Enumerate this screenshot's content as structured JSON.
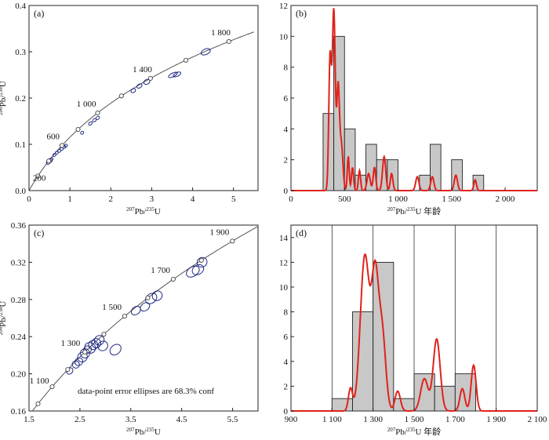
{
  "chart_data": [
    {
      "panel": "a",
      "type": "scatter",
      "panel_label": "(a)",
      "xlabel": {
        "sup1": "207",
        "main1": "Pb/",
        "sup2": "235",
        "main2": "U"
      },
      "ylabel": {
        "sup1": "206",
        "main1": "Pb/",
        "sup2": "238",
        "main2": "U"
      },
      "xlim": [
        0,
        5.6
      ],
      "ylim": [
        0,
        0.4
      ],
      "x_ticks": [
        {
          "v": 0,
          "label": "0"
        },
        {
          "v": 1,
          "label": "1"
        },
        {
          "v": 2,
          "label": "2"
        },
        {
          "v": 3,
          "label": "3"
        },
        {
          "v": 4,
          "label": "4"
        },
        {
          "v": 5,
          "label": "5"
        }
      ],
      "y_ticks": [
        {
          "v": 0,
          "label": "0.0"
        },
        {
          "v": 0.1,
          "label": "0.1"
        },
        {
          "v": 0.2,
          "label": "0.2"
        },
        {
          "v": 0.3,
          "label": "0.3"
        },
        {
          "v": 0.4,
          "label": "0.4"
        }
      ],
      "concordia_age_ma": [
        0,
        1900
      ],
      "age_markers_ma": [
        200,
        400,
        600,
        800,
        1000,
        1200,
        1400,
        1600,
        1800
      ],
      "age_labels": [
        {
          "age": 200,
          "text": "200"
        },
        {
          "age": 600,
          "text": "600"
        },
        {
          "age": 1000,
          "text": "1 000"
        },
        {
          "age": 1400,
          "text": "1 400"
        },
        {
          "age": 1800,
          "text": "1 800"
        }
      ],
      "ellipses": [
        [
          0.47,
          0.061,
          0.05,
          0.004
        ],
        [
          0.52,
          0.065,
          0.05,
          0.004
        ],
        [
          0.55,
          0.068,
          0.04,
          0.003
        ],
        [
          0.62,
          0.077,
          0.04,
          0.003
        ],
        [
          0.68,
          0.082,
          0.04,
          0.003
        ],
        [
          0.74,
          0.086,
          0.04,
          0.003
        ],
        [
          0.8,
          0.09,
          0.04,
          0.003
        ],
        [
          0.86,
          0.094,
          0.04,
          0.003
        ],
        [
          0.9,
          0.097,
          0.04,
          0.003
        ],
        [
          1.3,
          0.125,
          0.04,
          0.003
        ],
        [
          1.5,
          0.145,
          0.05,
          0.003
        ],
        [
          1.6,
          0.152,
          0.05,
          0.003
        ],
        [
          1.68,
          0.157,
          0.05,
          0.003
        ],
        [
          2.55,
          0.216,
          0.06,
          0.004
        ],
        [
          2.7,
          0.226,
          0.07,
          0.004
        ],
        [
          2.88,
          0.235,
          0.08,
          0.005
        ],
        [
          3.52,
          0.25,
          0.12,
          0.004
        ],
        [
          3.62,
          0.251,
          0.1,
          0.004
        ],
        [
          4.32,
          0.3,
          0.12,
          0.006
        ]
      ]
    },
    {
      "panel": "b",
      "type": "bar",
      "panel_label": "(b)",
      "xlabel": {
        "sup1": "207",
        "main1": "Pb/",
        "sup2": "235",
        "main2": "U 年龄"
      },
      "xlim": [
        0,
        2300
      ],
      "ylim": [
        0,
        12
      ],
      "x_ticks": [
        {
          "v": 0,
          "label": "0"
        },
        {
          "v": 500,
          "label": "500"
        },
        {
          "v": 1000,
          "label": "1 000"
        },
        {
          "v": 1500,
          "label": "1 500"
        },
        {
          "v": 2000,
          "label": "2 000"
        }
      ],
      "y_ticks": [
        {
          "v": 0,
          "label": "0"
        },
        {
          "v": 2,
          "label": "2"
        },
        {
          "v": 4,
          "label": "4"
        },
        {
          "v": 6,
          "label": "6"
        },
        {
          "v": 8,
          "label": "8"
        },
        {
          "v": 10,
          "label": "10"
        },
        {
          "v": 12,
          "label": "12"
        }
      ],
      "bins": [
        {
          "from": 300,
          "to": 400,
          "count": 5
        },
        {
          "from": 400,
          "to": 500,
          "count": 10
        },
        {
          "from": 500,
          "to": 600,
          "count": 4
        },
        {
          "from": 600,
          "to": 700,
          "count": 1
        },
        {
          "from": 700,
          "to": 800,
          "count": 3
        },
        {
          "from": 800,
          "to": 900,
          "count": 2
        },
        {
          "from": 900,
          "to": 1000,
          "count": 2
        },
        {
          "from": 1200,
          "to": 1300,
          "count": 1
        },
        {
          "from": 1300,
          "to": 1400,
          "count": 3
        },
        {
          "from": 1500,
          "to": 1600,
          "count": 2
        },
        {
          "from": 1700,
          "to": 1800,
          "count": 1
        }
      ],
      "density_peaks": [
        [
          365,
          8.5,
          12
        ],
        [
          400,
          11.7,
          14
        ],
        [
          440,
          6.5,
          12
        ],
        [
          470,
          3,
          15
        ],
        [
          535,
          2.2,
          9
        ],
        [
          575,
          1.5,
          10
        ],
        [
          640,
          1.3,
          10
        ],
        [
          725,
          1.1,
          15
        ],
        [
          780,
          1.5,
          12
        ],
        [
          870,
          2.2,
          15
        ],
        [
          940,
          1.1,
          12
        ],
        [
          1180,
          0.9,
          15
        ],
        [
          1320,
          0.9,
          15
        ],
        [
          1540,
          1,
          15
        ],
        [
          1720,
          0.7,
          12
        ]
      ]
    },
    {
      "panel": "c",
      "type": "scatter",
      "panel_label": "(c)",
      "xlabel": {
        "sup1": "207",
        "main1": "Pb/",
        "sup2": "235",
        "main2": "U"
      },
      "ylabel": {
        "sup1": "206",
        "main1": "Pb/",
        "sup2": "238",
        "main2": "U"
      },
      "xlim": [
        1.5,
        6.0
      ],
      "ylim": [
        0.16,
        0.36
      ],
      "x_ticks": [
        {
          "v": 1.5,
          "label": "1.5"
        },
        {
          "v": 2.5,
          "label": "2.5"
        },
        {
          "v": 3.5,
          "label": "3.5"
        },
        {
          "v": 4.5,
          "label": "4.5"
        },
        {
          "v": 5.5,
          "label": "5.5"
        }
      ],
      "y_ticks": [
        {
          "v": 0.16,
          "label": "0.16"
        },
        {
          "v": 0.2,
          "label": "0.20"
        },
        {
          "v": 0.24,
          "label": "0.24"
        },
        {
          "v": 0.28,
          "label": "0.28"
        },
        {
          "v": 0.32,
          "label": "0.32"
        },
        {
          "v": 0.36,
          "label": "0.36"
        }
      ],
      "concordia_age_ma": [
        950,
        2050
      ],
      "age_markers_ma": [
        1000,
        1100,
        1200,
        1300,
        1400,
        1500,
        1600,
        1700,
        1800,
        1900
      ],
      "age_labels": [
        {
          "age": 1100,
          "text": "1 100"
        },
        {
          "age": 1300,
          "text": "1 300"
        },
        {
          "age": 1500,
          "text": "1 500"
        },
        {
          "age": 1700,
          "text": "1 700"
        },
        {
          "age": 1900,
          "text": "1 900"
        }
      ],
      "note": "data-point error ellipses are 68.3% conf",
      "ellipses": [
        [
          2.3,
          0.203,
          0.07,
          0.003
        ],
        [
          2.42,
          0.21,
          0.07,
          0.004
        ],
        [
          2.48,
          0.213,
          0.08,
          0.004
        ],
        [
          2.55,
          0.218,
          0.1,
          0.005
        ],
        [
          2.6,
          0.222,
          0.09,
          0.005
        ],
        [
          2.65,
          0.226,
          0.08,
          0.004
        ],
        [
          2.7,
          0.228,
          0.1,
          0.006
        ],
        [
          2.76,
          0.231,
          0.09,
          0.005
        ],
        [
          2.82,
          0.233,
          0.09,
          0.005
        ],
        [
          2.88,
          0.236,
          0.1,
          0.005
        ],
        [
          2.95,
          0.23,
          0.1,
          0.005
        ],
        [
          3.2,
          0.226,
          0.12,
          0.005
        ],
        [
          3.6,
          0.268,
          0.1,
          0.004
        ],
        [
          3.78,
          0.272,
          0.1,
          0.004
        ],
        [
          3.9,
          0.281,
          0.12,
          0.005
        ],
        [
          4.02,
          0.284,
          0.1,
          0.005
        ],
        [
          4.72,
          0.31,
          0.14,
          0.005
        ],
        [
          4.82,
          0.312,
          0.12,
          0.005
        ],
        [
          4.9,
          0.32,
          0.1,
          0.005
        ]
      ]
    },
    {
      "panel": "d",
      "type": "bar",
      "panel_label": "(d)",
      "xlabel": {
        "sup1": "207",
        "main1": "Pb/",
        "sup2": "235",
        "main2": "U 年龄"
      },
      "xlim": [
        900,
        2100
      ],
      "ylim": [
        0,
        15
      ],
      "x_ticks": [
        {
          "v": 900,
          "label": "900"
        },
        {
          "v": 1100,
          "label": "1 100"
        },
        {
          "v": 1300,
          "label": "1 300"
        },
        {
          "v": 1500,
          "label": "1 500"
        },
        {
          "v": 1700,
          "label": "1 700"
        },
        {
          "v": 1900,
          "label": "1 900"
        },
        {
          "v": 2100,
          "label": "2 100"
        }
      ],
      "y_ticks": [
        {
          "v": 0,
          "label": "0"
        },
        {
          "v": 2,
          "label": "2"
        },
        {
          "v": 4,
          "label": "4"
        },
        {
          "v": 6,
          "label": "6"
        },
        {
          "v": 8,
          "label": "8"
        },
        {
          "v": 10,
          "label": "10"
        },
        {
          "v": 12,
          "label": "12"
        },
        {
          "v": 14,
          "label": "14"
        }
      ],
      "vlines": [
        1100,
        1300,
        1500,
        1700,
        1900
      ],
      "bins": [
        {
          "from": 1100,
          "to": 1200,
          "count": 1
        },
        {
          "from": 1200,
          "to": 1300,
          "count": 8
        },
        {
          "from": 1300,
          "to": 1400,
          "count": 12
        },
        {
          "from": 1400,
          "to": 1500,
          "count": 1
        },
        {
          "from": 1500,
          "to": 1600,
          "count": 3
        },
        {
          "from": 1600,
          "to": 1700,
          "count": 2
        },
        {
          "from": 1700,
          "to": 1800,
          "count": 3
        }
      ],
      "density_peaks": [
        [
          1190,
          1.8,
          10
        ],
        [
          1260,
          12.5,
          22
        ],
        [
          1310,
          10.5,
          17
        ],
        [
          1345,
          6,
          17
        ],
        [
          1420,
          1.6,
          13
        ],
        [
          1550,
          2.6,
          18
        ],
        [
          1610,
          5.8,
          17
        ],
        [
          1735,
          1.8,
          12
        ],
        [
          1790,
          3.7,
          12
        ]
      ]
    }
  ]
}
